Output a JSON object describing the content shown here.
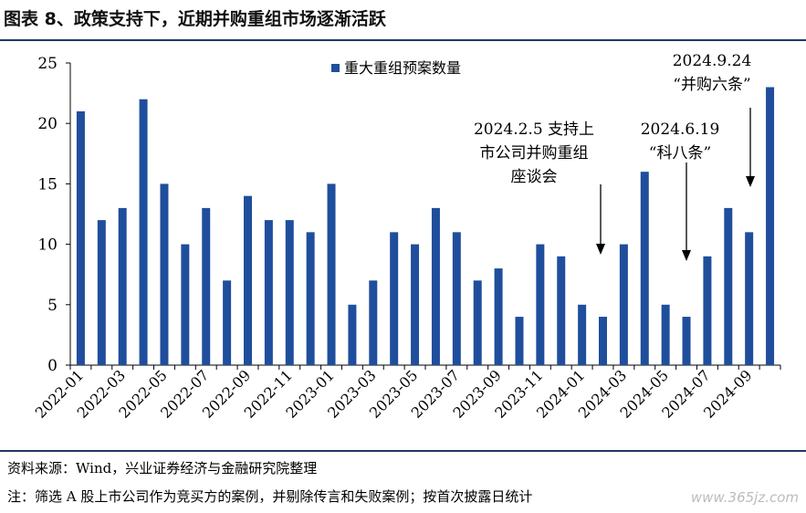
{
  "title": "图表 8、政策支持下，近期并购重组市场逐渐活跃",
  "source": "资料来源：Wind，兴业证券经济与金融研究院整理",
  "note": "注：筛选 A 股上市公司作为竞买方的案例，并剔除传言和失败案例；按首次披露日统计",
  "watermark": "www.365jz.com",
  "colors": {
    "bar": "#1f4e9c",
    "rule": "#1f3864"
  },
  "chart_data": {
    "type": "bar",
    "title": "",
    "xlabel": "",
    "ylabel": "",
    "ylim": [
      0,
      25
    ],
    "yticks": [
      0,
      5,
      10,
      15,
      20,
      25
    ],
    "grid": false,
    "legend_position": "top",
    "categories": [
      "2022-01",
      "2022-02",
      "2022-03",
      "2022-04",
      "2022-05",
      "2022-06",
      "2022-07",
      "2022-08",
      "2022-09",
      "2022-10",
      "2022-11",
      "2022-12",
      "2023-01",
      "2023-02",
      "2023-03",
      "2023-04",
      "2023-05",
      "2023-06",
      "2023-07",
      "2023-08",
      "2023-09",
      "2023-10",
      "2023-11",
      "2023-12",
      "2024-01",
      "2024-02",
      "2024-03",
      "2024-04",
      "2024-05",
      "2024-06",
      "2024-07",
      "2024-08",
      "2024-09",
      "2024-10"
    ],
    "xtick_labels": [
      "2022-01",
      "2022-03",
      "2022-05",
      "2022-07",
      "2022-09",
      "2022-11",
      "2023-01",
      "2023-03",
      "2023-05",
      "2023-07",
      "2023-09",
      "2023-11",
      "2024-01",
      "2024-03",
      "2024-05",
      "2024-07",
      "2024-09"
    ],
    "series": [
      {
        "name": "重大重组预案数量",
        "values": [
          21,
          12,
          13,
          22,
          15,
          10,
          13,
          7,
          14,
          12,
          12,
          11,
          15,
          5,
          7,
          11,
          10,
          13,
          11,
          7,
          8,
          4,
          10,
          9,
          5,
          4,
          10,
          16,
          5,
          4,
          9,
          13,
          11,
          23
        ]
      }
    ],
    "annotations": [
      {
        "lines": [
          "2024.2.5 支持上",
          "市公司并购重组",
          "座谈会"
        ],
        "target": "2024-02"
      },
      {
        "lines": [
          "2024.6.19",
          "“科八条”"
        ],
        "target": "2024-06"
      },
      {
        "lines": [
          "2024.9.24",
          "“并购六条”"
        ],
        "target": "2024-09"
      }
    ]
  }
}
